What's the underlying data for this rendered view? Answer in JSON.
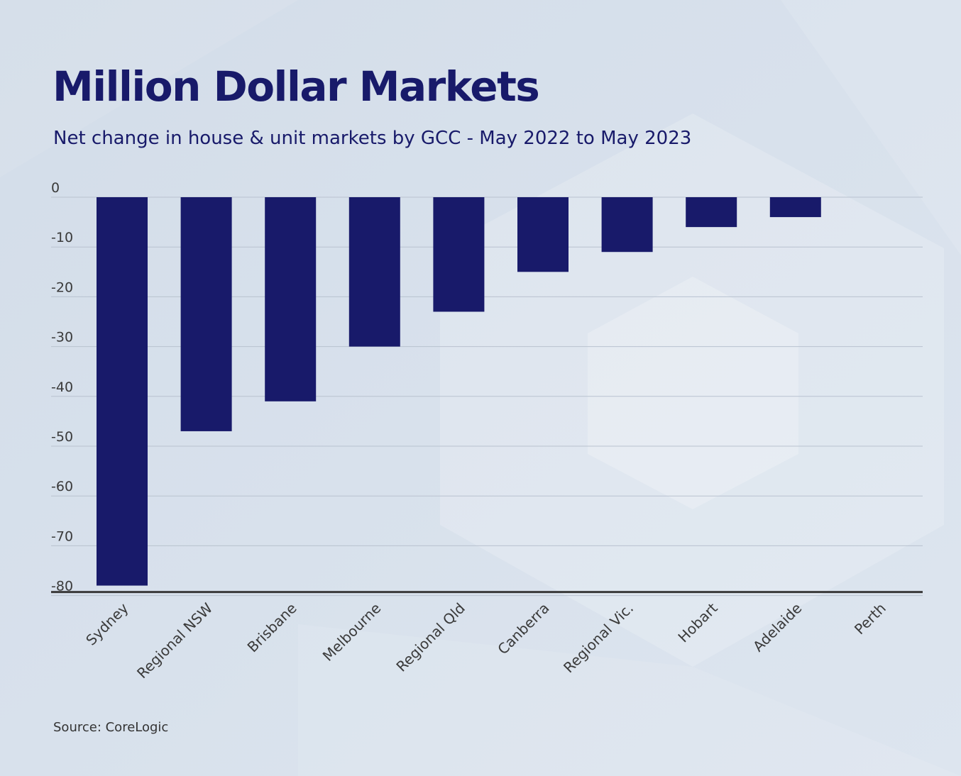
{
  "header": {
    "title": "Million Dollar Markets",
    "subtitle": "Net change in house & unit markets by GCC - May 2022 to May 2023"
  },
  "footer": {
    "source": "Source: CoreLogic"
  },
  "colors": {
    "bar": "#181a6a",
    "title": "#181a6a",
    "gridline": "#b9c2cf",
    "axis": "#3a3a3a",
    "background": "#d8e2ee"
  },
  "chart_data": {
    "type": "bar",
    "title": "Million Dollar Markets",
    "subtitle": "Net change in house & unit markets by GCC - May 2022 to May 2023",
    "xlabel": "",
    "ylabel": "",
    "categories": [
      "Sydney",
      "Regional NSW",
      "Brisbane",
      "Melbourne",
      "Regional Qld",
      "Canberra",
      "Regional Vic.",
      "Hobart",
      "Adelaide",
      "Perth"
    ],
    "values": [
      -78,
      -47,
      -41,
      -30,
      -23,
      -15,
      -11,
      -6,
      -4,
      0
    ],
    "ylim": [
      -81,
      0
    ],
    "yticks": [
      0,
      -10,
      -20,
      -30,
      -40,
      -50,
      -60,
      -70,
      -80
    ],
    "grid": true,
    "legend": "none"
  }
}
